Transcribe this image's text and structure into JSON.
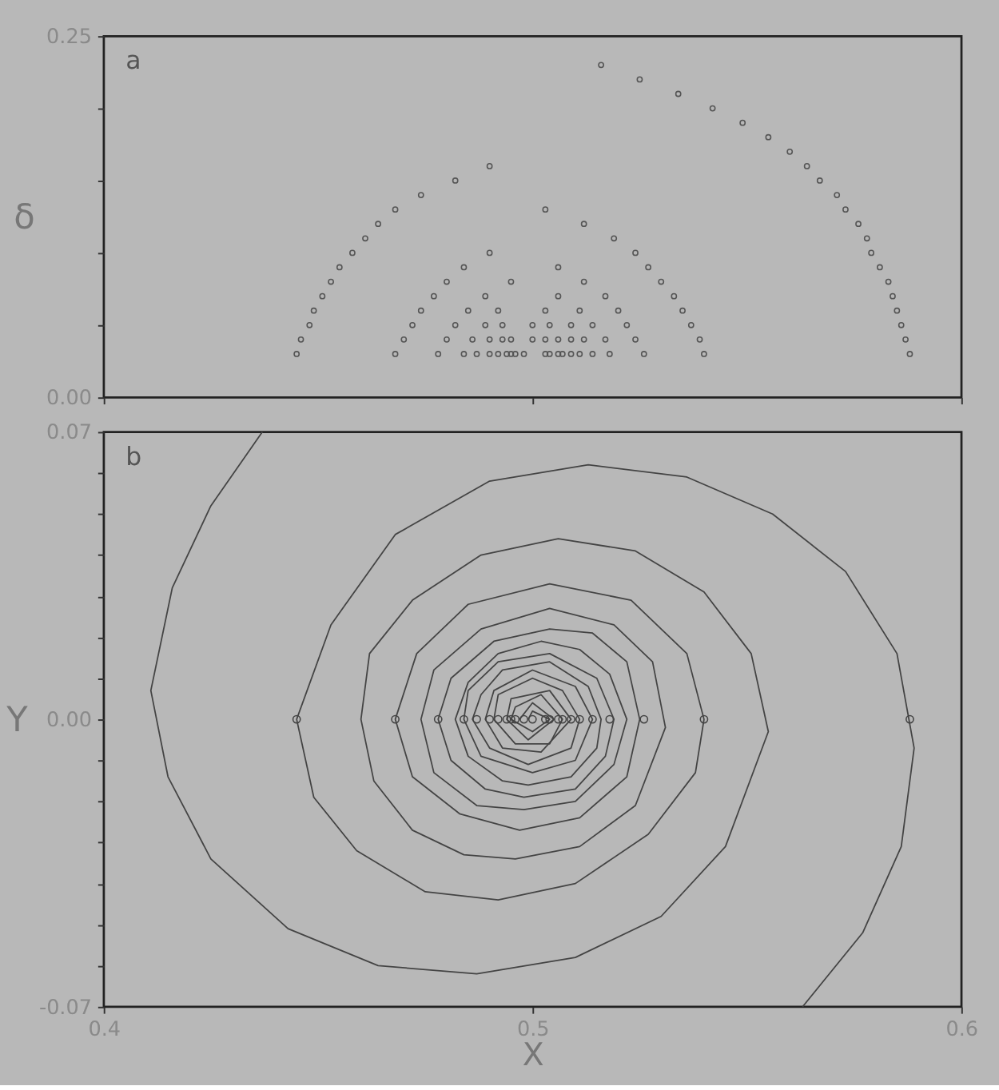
{
  "chart_data": [
    {
      "type": "scatter",
      "ylabel": "δ",
      "annotations": [
        "a"
      ],
      "xlim": [
        0.4,
        0.6
      ],
      "ylim": [
        0,
        0.25
      ],
      "xticks": [
        0.4,
        0.5,
        0.6
      ],
      "yticks": [
        {
          "value": 0,
          "label": "0.00"
        },
        {
          "value": 0.05,
          "label": null
        },
        {
          "value": 0.1,
          "label": null
        },
        {
          "value": 0.15,
          "label": null
        },
        {
          "value": 0.2,
          "label": null
        },
        0.25
      ],
      "tick_labels": "y",
      "grid": false,
      "marker": "circle",
      "series": [
        {
          "color": "#555555",
          "x": [
            0.445,
            0.468,
            0.478,
            0.484,
            0.487,
            0.49,
            0.492,
            0.494,
            0.495,
            0.496,
            0.498,
            0.503,
            0.504,
            0.506,
            0.507,
            0.509,
            0.511,
            0.514,
            0.518,
            0.526,
            0.54,
            0.588,
            0.446,
            0.47,
            0.48,
            0.486,
            0.49,
            0.493,
            0.495,
            0.5,
            0.503,
            0.506,
            0.509,
            0.512,
            0.517,
            0.524,
            0.539,
            0.587,
            0.448,
            0.472,
            0.482,
            0.489,
            0.493,
            0.5,
            0.504,
            0.509,
            0.514,
            0.522,
            0.537,
            0.586,
            0.449,
            0.474,
            0.485,
            0.492,
            0.503,
            0.511,
            0.52,
            0.535,
            0.585,
            0.451,
            0.477,
            0.489,
            0.506,
            0.517,
            0.533,
            0.584,
            0.453,
            0.48,
            0.495,
            0.512,
            0.53,
            0.583,
            0.455,
            0.484,
            0.506,
            0.527,
            0.581,
            0.458,
            0.49,
            0.524,
            0.579,
            0.461,
            0.519,
            0.578,
            0.464,
            0.512,
            0.576,
            0.468,
            0.503,
            0.573,
            0.474,
            0.571,
            0.482,
            0.567,
            0.49,
            0.564,
            0.56,
            0.555,
            0.549,
            0.542,
            0.534,
            0.525,
            0.516
          ],
          "values": [
            0.03,
            0.03,
            0.03,
            0.03,
            0.03,
            0.03,
            0.03,
            0.03,
            0.03,
            0.03,
            0.03,
            0.03,
            0.03,
            0.03,
            0.03,
            0.03,
            0.03,
            0.03,
            0.03,
            0.03,
            0.03,
            0.03,
            0.04,
            0.04,
            0.04,
            0.04,
            0.04,
            0.04,
            0.04,
            0.04,
            0.04,
            0.04,
            0.04,
            0.04,
            0.04,
            0.04,
            0.04,
            0.04,
            0.05,
            0.05,
            0.05,
            0.05,
            0.05,
            0.05,
            0.05,
            0.05,
            0.05,
            0.05,
            0.05,
            0.05,
            0.06,
            0.06,
            0.06,
            0.06,
            0.06,
            0.06,
            0.06,
            0.06,
            0.06,
            0.07,
            0.07,
            0.07,
            0.07,
            0.07,
            0.07,
            0.07,
            0.08,
            0.08,
            0.08,
            0.08,
            0.08,
            0.08,
            0.09,
            0.09,
            0.09,
            0.09,
            0.09,
            0.1,
            0.1,
            0.1,
            0.1,
            0.11,
            0.11,
            0.11,
            0.12,
            0.12,
            0.12,
            0.13,
            0.13,
            0.13,
            0.14,
            0.14,
            0.15,
            0.15,
            0.16,
            0.16,
            0.17,
            0.18,
            0.19,
            0.2,
            0.21,
            0.22,
            0.23
          ]
        }
      ]
    },
    {
      "type": "line",
      "xlabel": "X",
      "ylabel": "Y",
      "annotations": [
        "b"
      ],
      "xlim": [
        0.4,
        0.6
      ],
      "ylim": [
        -0.07,
        0.07
      ],
      "xticks": [
        0.4,
        0.5,
        0.6
      ],
      "yticks": [
        -0.07,
        {
          "value": -0.06,
          "label": null
        },
        {
          "value": -0.05,
          "label": null
        },
        {
          "value": -0.04,
          "label": null
        },
        {
          "value": -0.03,
          "label": null
        },
        {
          "value": -0.02,
          "label": null
        },
        {
          "value": -0.01,
          "label": null
        },
        {
          "value": 0,
          "label": "0.00"
        },
        {
          "value": 0.01,
          "label": null
        },
        {
          "value": 0.02,
          "label": null
        },
        {
          "value": 0.03,
          "label": null
        },
        {
          "value": 0.04,
          "label": null
        },
        {
          "value": 0.05,
          "label": null
        },
        {
          "value": 0.06,
          "label": null
        },
        0.07
      ],
      "grid": false,
      "marker": "none",
      "line_style": "solid",
      "series": [
        {
          "type": "line",
          "color": "#444444",
          "x": [
            0.437,
            0.425,
            0.416,
            0.411,
            0.415,
            0.425,
            0.443,
            0.464,
            0.487,
            0.51,
            0.53,
            0.545,
            0.555,
            0.551,
            0.54,
            0.524,
            0.506,
            0.488,
            0.472,
            0.462,
            0.46,
            0.463,
            0.472,
            0.484,
            0.496,
            0.511,
            0.524,
            0.531,
            0.528,
            0.519,
            0.504,
            0.488,
            0.477,
            0.474,
            0.477,
            0.487,
            0.498,
            0.51,
            0.519,
            0.522,
            0.518,
            0.511,
            0.502,
            0.492,
            0.485,
            0.482,
            0.485,
            0.493,
            0.499,
            0.509,
            0.515,
            0.516,
            0.513,
            0.504,
            0.493,
            0.488,
            0.486,
            0.49,
            0.499,
            0.509,
            0.511,
            0.507,
            0.5,
            0.492,
            0.491,
            0.496,
            0.504,
            0.507,
            0.502,
            0.496,
            0.495,
            0.5,
            0.504,
            0.5,
            0.499
          ],
          "values": [
            0.07,
            0.052,
            0.032,
            0.007,
            -0.014,
            -0.034,
            -0.051,
            -0.06,
            -0.062,
            -0.058,
            -0.048,
            -0.031,
            -0.003,
            0.016,
            0.031,
            0.041,
            0.044,
            0.04,
            0.029,
            0.016,
            0.0,
            -0.015,
            -0.027,
            -0.033,
            -0.034,
            -0.031,
            -0.021,
            -0.002,
            0.014,
            0.023,
            0.027,
            0.022,
            0.012,
            0.0,
            -0.013,
            -0.021,
            -0.022,
            -0.02,
            -0.011,
            0.0,
            0.011,
            0.017,
            0.019,
            0.016,
            0.009,
            0.0,
            -0.009,
            -0.015,
            -0.016,
            -0.014,
            -0.007,
            0.0,
            0.008,
            0.014,
            0.012,
            0.006,
            0.0,
            -0.007,
            -0.011,
            -0.007,
            0.0,
            0.007,
            0.01,
            0.006,
            0.0,
            -0.006,
            -0.006,
            0.0,
            0.006,
            0.003,
            0.0,
            -0.003,
            0.0,
            0.002,
            0.0
          ]
        },
        {
          "type": "line",
          "color": "#444444",
          "x": [
            0.563,
            0.577,
            0.586,
            0.589,
            0.585,
            0.573,
            0.556,
            0.536,
            0.513,
            0.49,
            0.468,
            0.453,
            0.445,
            0.449,
            0.459,
            0.475,
            0.492,
            0.51,
            0.527,
            0.538,
            0.54,
            0.536,
            0.523,
            0.504,
            0.485,
            0.473,
            0.468,
            0.472,
            0.483,
            0.497,
            0.511,
            0.522,
            0.525,
            0.522,
            0.514,
            0.504,
            0.491,
            0.481,
            0.478,
            0.481,
            0.489,
            0.498,
            0.51,
            0.517,
            0.519,
            0.515,
            0.504,
            0.492,
            0.485,
            0.484,
            0.488,
            0.5,
            0.51,
            0.514,
            0.51,
            0.5,
            0.491,
            0.489,
            0.493,
            0.502,
            0.509,
            0.504,
            0.495,
            0.494,
            0.499,
            0.505,
            0.5,
            0.497
          ],
          "values": [
            -0.07,
            -0.052,
            -0.031,
            -0.007,
            0.016,
            0.036,
            0.05,
            0.059,
            0.062,
            0.058,
            0.045,
            0.023,
            0.0,
            -0.019,
            -0.032,
            -0.042,
            -0.044,
            -0.04,
            -0.028,
            -0.013,
            0.0,
            0.016,
            0.029,
            0.033,
            0.028,
            0.016,
            0.0,
            -0.014,
            -0.023,
            -0.027,
            -0.024,
            -0.014,
            0.0,
            0.014,
            0.021,
            0.022,
            0.019,
            0.01,
            0.0,
            -0.01,
            -0.017,
            -0.019,
            -0.017,
            -0.009,
            0.0,
            0.01,
            0.016,
            0.014,
            0.007,
            0.0,
            -0.009,
            -0.013,
            -0.01,
            0.0,
            0.008,
            0.012,
            0.007,
            0.0,
            -0.007,
            -0.008,
            0.0,
            0.007,
            0.005,
            0.0,
            -0.005,
            0.0,
            0.004,
            0.0
          ]
        },
        {
          "type": "scatter",
          "marker": "circle",
          "color": "#444444",
          "x": [
            0.445,
            0.468,
            0.478,
            0.484,
            0.487,
            0.49,
            0.492,
            0.494,
            0.495,
            0.496,
            0.498,
            0.5,
            0.503,
            0.504,
            0.506,
            0.507,
            0.509,
            0.511,
            0.514,
            0.518,
            0.526,
            0.54,
            0.588
          ],
          "values": [
            0,
            0,
            0,
            0,
            0,
            0,
            0,
            0,
            0,
            0,
            0,
            0,
            0,
            0,
            0,
            0,
            0,
            0,
            0,
            0,
            0,
            0,
            0
          ]
        }
      ]
    }
  ]
}
